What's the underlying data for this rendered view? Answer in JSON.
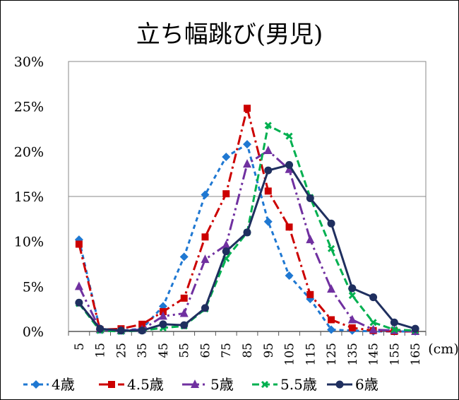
{
  "chart_data": {
    "type": "line",
    "title": "立ち幅跳び(男児)",
    "xlabel": "(cm)",
    "ylabel": "",
    "categories": [
      "5",
      "15",
      "25",
      "35",
      "45",
      "55",
      "65",
      "75",
      "85",
      "95",
      "105",
      "115",
      "125",
      "135",
      "145",
      "155",
      "165"
    ],
    "y_ticks": [
      "0%",
      "5%",
      "10%",
      "15%",
      "20%",
      "25%",
      "30%"
    ],
    "ylim": [
      0,
      30
    ],
    "grid": "horizontal line at 15% only",
    "legend_position": "bottom",
    "series": [
      {
        "name": "4歳",
        "color": "#1f78d2",
        "dash": "6,5",
        "marker": "diamond",
        "values": [
          10.2,
          0.2,
          0.1,
          0.3,
          2.8,
          8.3,
          15.2,
          19.4,
          20.8,
          12.2,
          6.2,
          3.6,
          0.2,
          0.1,
          0.0,
          0.0,
          0.0
        ]
      },
      {
        "name": "4.5歳",
        "color": "#cc0000",
        "dash": "14,5,3,5",
        "marker": "square",
        "values": [
          9.7,
          0.2,
          0.3,
          0.8,
          2.2,
          3.7,
          10.5,
          15.3,
          24.8,
          15.6,
          11.6,
          4.1,
          1.3,
          0.4,
          0.1,
          0.0,
          0.0
        ]
      },
      {
        "name": "5歳",
        "color": "#7030a0",
        "dash": "16,5,3,5,3,5",
        "marker": "triangle",
        "values": [
          5.0,
          0.2,
          0.1,
          0.2,
          1.7,
          2.0,
          8.0,
          9.6,
          18.6,
          20.1,
          18.0,
          10.2,
          4.7,
          1.3,
          0.2,
          0.1,
          0.0
        ]
      },
      {
        "name": "5.5歳",
        "color": "#00b050",
        "dash": "10,5",
        "marker": "cross",
        "values": [
          3.1,
          0.1,
          0.0,
          0.1,
          0.4,
          0.6,
          2.5,
          8.1,
          11.0,
          22.9,
          21.7,
          14.9,
          9.2,
          4.0,
          1.0,
          0.2,
          0.1
        ]
      },
      {
        "name": "6歳",
        "color": "#1f2f5f",
        "dash": "",
        "marker": "circle",
        "values": [
          3.2,
          0.3,
          0.1,
          0.1,
          0.8,
          0.7,
          2.6,
          8.9,
          11.0,
          17.9,
          18.5,
          14.8,
          12.0,
          4.8,
          3.8,
          1.0,
          0.3
        ]
      }
    ]
  }
}
